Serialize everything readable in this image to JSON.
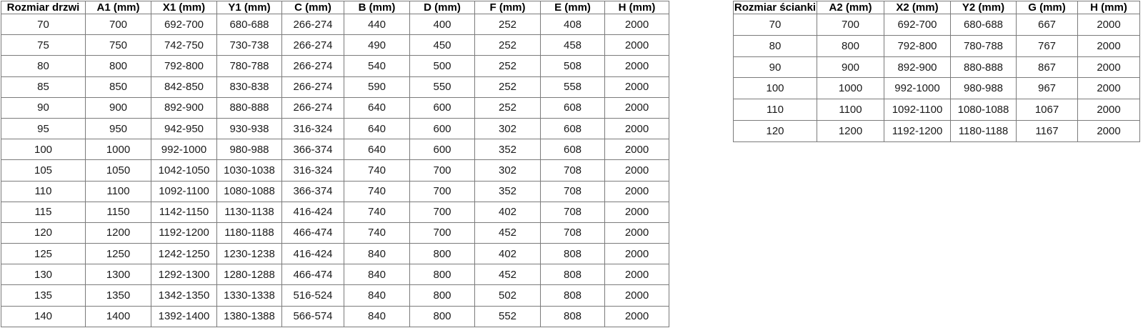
{
  "page": {
    "background_color": "#ffffff",
    "border_color": "#7b7b7b",
    "text_color": "#1a1a1a"
  },
  "door_table": {
    "title": "Rozmiar drzwi table",
    "headers": [
      "Rozmiar drzwi",
      "A1 (mm)",
      "X1 (mm)",
      "Y1 (mm)",
      "C (mm)",
      "B (mm)",
      "D (mm)",
      "F (mm)",
      "E (mm)",
      "H (mm)"
    ],
    "rows": [
      [
        "70",
        "700",
        "692-700",
        "680-688",
        "266-274",
        "440",
        "400",
        "252",
        "408",
        "2000"
      ],
      [
        "75",
        "750",
        "742-750",
        "730-738",
        "266-274",
        "490",
        "450",
        "252",
        "458",
        "2000"
      ],
      [
        "80",
        "800",
        "792-800",
        "780-788",
        "266-274",
        "540",
        "500",
        "252",
        "508",
        "2000"
      ],
      [
        "85",
        "850",
        "842-850",
        "830-838",
        "266-274",
        "590",
        "550",
        "252",
        "558",
        "2000"
      ],
      [
        "90",
        "900",
        "892-900",
        "880-888",
        "266-274",
        "640",
        "600",
        "252",
        "608",
        "2000"
      ],
      [
        "95",
        "950",
        "942-950",
        "930-938",
        "316-324",
        "640",
        "600",
        "302",
        "608",
        "2000"
      ],
      [
        "100",
        "1000",
        "992-1000",
        "980-988",
        "366-374",
        "640",
        "600",
        "352",
        "608",
        "2000"
      ],
      [
        "105",
        "1050",
        "1042-1050",
        "1030-1038",
        "316-324",
        "740",
        "700",
        "302",
        "708",
        "2000"
      ],
      [
        "110",
        "1100",
        "1092-1100",
        "1080-1088",
        "366-374",
        "740",
        "700",
        "352",
        "708",
        "2000"
      ],
      [
        "115",
        "1150",
        "1142-1150",
        "1130-1138",
        "416-424",
        "740",
        "700",
        "402",
        "708",
        "2000"
      ],
      [
        "120",
        "1200",
        "1192-1200",
        "1180-1188",
        "466-474",
        "740",
        "700",
        "452",
        "708",
        "2000"
      ],
      [
        "125",
        "1250",
        "1242-1250",
        "1230-1238",
        "416-424",
        "840",
        "800",
        "402",
        "808",
        "2000"
      ],
      [
        "130",
        "1300",
        "1292-1300",
        "1280-1288",
        "466-474",
        "840",
        "800",
        "452",
        "808",
        "2000"
      ],
      [
        "135",
        "1350",
        "1342-1350",
        "1330-1338",
        "516-524",
        "840",
        "800",
        "502",
        "808",
        "2000"
      ],
      [
        "140",
        "1400",
        "1392-1400",
        "1380-1388",
        "566-574",
        "840",
        "800",
        "552",
        "808",
        "2000"
      ]
    ]
  },
  "wall_table": {
    "title": "Rozmiar ścianki table",
    "headers": [
      "Rozmiar ścianki",
      "A2 (mm)",
      "X2 (mm)",
      "Y2 (mm)",
      "G (mm)",
      "H (mm)"
    ],
    "rows": [
      [
        "70",
        "700",
        "692-700",
        "680-688",
        "667",
        "2000"
      ],
      [
        "80",
        "800",
        "792-800",
        "780-788",
        "767",
        "2000"
      ],
      [
        "90",
        "900",
        "892-900",
        "880-888",
        "867",
        "2000"
      ],
      [
        "100",
        "1000",
        "992-1000",
        "980-988",
        "967",
        "2000"
      ],
      [
        "110",
        "1100",
        "1092-1100",
        "1080-1088",
        "1067",
        "2000"
      ],
      [
        "120",
        "1200",
        "1192-1200",
        "1180-1188",
        "1167",
        "2000"
      ]
    ]
  }
}
